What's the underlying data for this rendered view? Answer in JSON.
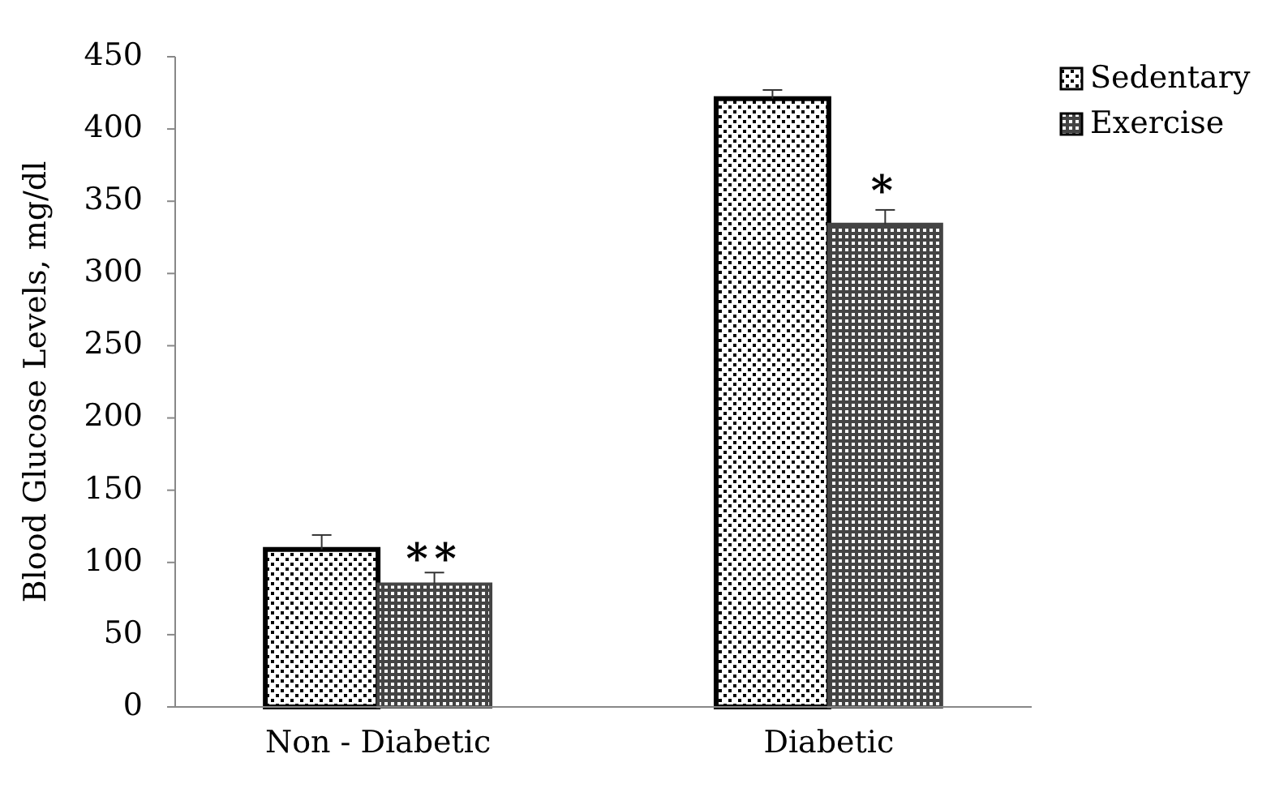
{
  "chart_data": {
    "type": "bar",
    "ylabel": "Blood Glucose Levels, mg/dl",
    "categories": [
      "Non - Diabetic",
      "Diabetic"
    ],
    "series": [
      {
        "name": "Sedentary",
        "color": "#000000",
        "values": [
          109,
          421
        ],
        "errors": [
          10,
          6
        ]
      },
      {
        "name": "Exercise",
        "color": "#444444",
        "values": [
          85,
          334
        ],
        "errors": [
          8,
          10
        ]
      }
    ],
    "ylim": [
      0,
      450
    ],
    "yticks": [
      0,
      50,
      100,
      150,
      200,
      250,
      300,
      350,
      400,
      450
    ],
    "grid": false,
    "legend": "top right",
    "annotations": [
      {
        "text": "**",
        "x": "Non - Diabetic",
        "y": 100
      },
      {
        "text": "*",
        "x": "Diabetic",
        "y": 355
      }
    ]
  }
}
